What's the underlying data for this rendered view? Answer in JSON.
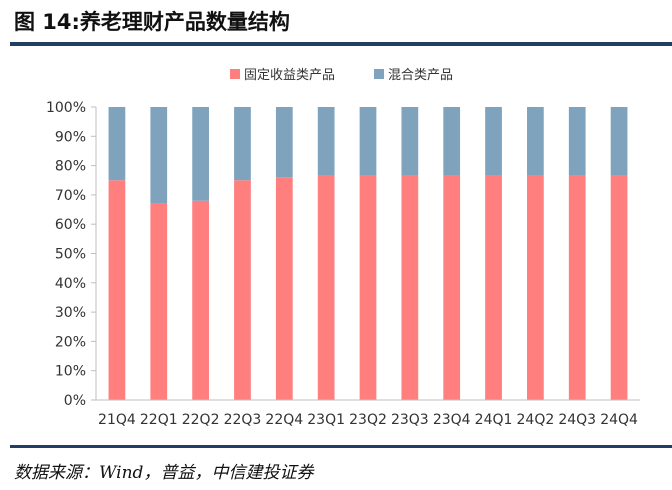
{
  "figure_title": "图 14:养老理财产品数量结构",
  "source_note": "数据来源：Wind，普益，中信建投证券",
  "colors": {
    "fixed_income": "#ff7f7f",
    "mixed": "#7fa3bd",
    "rule": "#1f3f64"
  },
  "chart_data": {
    "type": "bar",
    "stacked": true,
    "title": "",
    "xlabel": "",
    "ylabel": "",
    "categories": [
      "21Q4",
      "22Q1",
      "22Q2",
      "22Q3",
      "22Q4",
      "23Q1",
      "23Q2",
      "23Q3",
      "23Q4",
      "24Q1",
      "24Q2",
      "24Q3",
      "24Q4"
    ],
    "series": [
      {
        "name": "固定收益类产品",
        "values": [
          75,
          67,
          68,
          75,
          76,
          76.5,
          76.5,
          76.5,
          76.5,
          76.5,
          76.5,
          76.5,
          76.5
        ]
      },
      {
        "name": "混合类产品",
        "values": [
          25,
          33,
          32,
          25,
          24,
          23.5,
          23.5,
          23.5,
          23.5,
          23.5,
          23.5,
          23.5,
          23.5
        ]
      }
    ],
    "yticks": [
      "0%",
      "10%",
      "20%",
      "30%",
      "40%",
      "50%",
      "60%",
      "70%",
      "80%",
      "90%",
      "100%"
    ],
    "ylim": [
      0,
      100
    ],
    "legend_position": "top-center",
    "grid": false
  }
}
